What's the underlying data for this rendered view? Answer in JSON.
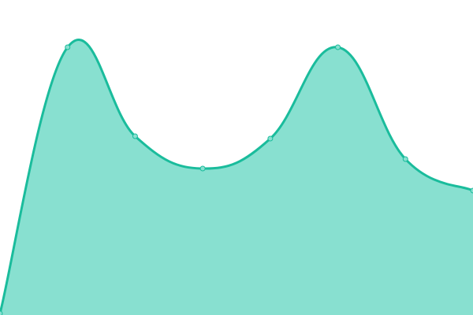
{
  "chart_data": {
    "type": "area",
    "title": "",
    "xlabel": "",
    "ylabel": "",
    "x": [
      0,
      1,
      2,
      3,
      4,
      5,
      6,
      7
    ],
    "values": [
      2,
      340,
      227,
      186,
      224,
      340,
      198,
      158
    ],
    "ylim": [
      0,
      400
    ],
    "grid": false,
    "legend": "none",
    "smooth": true,
    "colors": {
      "line": "#1abc9c",
      "fill": "#88e0d0",
      "marker_fill": "#88e0d0"
    }
  }
}
